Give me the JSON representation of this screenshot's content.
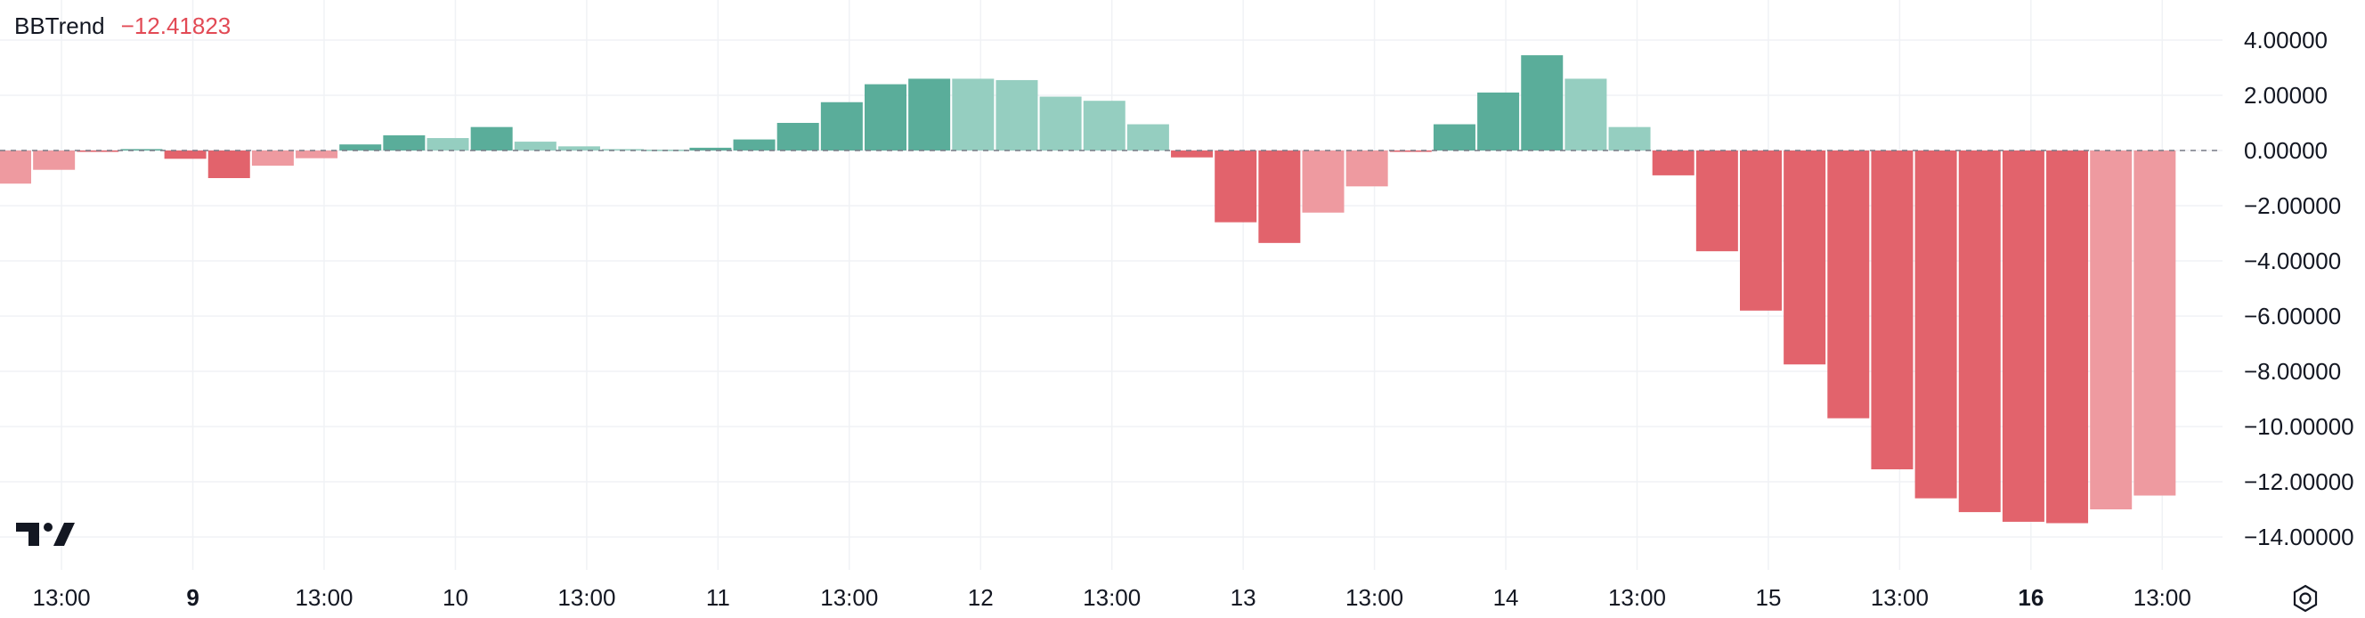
{
  "indicator": {
    "name": "BBTrend",
    "value": "−12.41823"
  },
  "icons": {
    "logo": "tradingview-logo-icon",
    "settings": "settings-gear-icon"
  },
  "colors": {
    "positive_strong": "#5aad9a",
    "positive_weak": "#95cec0",
    "negative_strong": "#e2636c",
    "negative_weak": "#ee9aa0",
    "grid": "#f0f2f5",
    "zero_line": "#787b86"
  },
  "chart_data": {
    "type": "bar",
    "ylim": [
      -15,
      5
    ],
    "y_ticks": [
      {
        "v": 4,
        "label": "4.00000"
      },
      {
        "v": 2,
        "label": "2.00000"
      },
      {
        "v": 0,
        "label": "0.00000"
      },
      {
        "v": -2,
        "label": "−2.00000"
      },
      {
        "v": -4,
        "label": "−4.00000"
      },
      {
        "v": -6,
        "label": "−6.00000"
      },
      {
        "v": -8,
        "label": "−8.00000"
      },
      {
        "v": -10,
        "label": "−10.00000"
      },
      {
        "v": -12,
        "label": "−12.00000"
      },
      {
        "v": -14,
        "label": "−14.00000"
      }
    ],
    "x_ticks": [
      {
        "bar": 1.65,
        "label": "13:00",
        "bold": false
      },
      {
        "bar": 4.65,
        "label": "9",
        "bold": true
      },
      {
        "bar": 7.65,
        "label": "13:00",
        "bold": false
      },
      {
        "bar": 10.65,
        "label": "10",
        "bold": false
      },
      {
        "bar": 13.65,
        "label": "13:00",
        "bold": false
      },
      {
        "bar": 16.65,
        "label": "11",
        "bold": false
      },
      {
        "bar": 19.65,
        "label": "13:00",
        "bold": false
      },
      {
        "bar": 22.65,
        "label": "12",
        "bold": false
      },
      {
        "bar": 25.65,
        "label": "13:00",
        "bold": false
      },
      {
        "bar": 28.65,
        "label": "13",
        "bold": false
      },
      {
        "bar": 31.65,
        "label": "13:00",
        "bold": false
      },
      {
        "bar": 34.65,
        "label": "14",
        "bold": false
      },
      {
        "bar": 37.65,
        "label": "13:00",
        "bold": false
      },
      {
        "bar": 40.65,
        "label": "15",
        "bold": false
      },
      {
        "bar": 43.65,
        "label": "13:00",
        "bold": false
      },
      {
        "bar": 46.65,
        "label": "16",
        "bold": true
      },
      {
        "bar": 49.65,
        "label": "13:00",
        "bold": false
      }
    ],
    "values": [
      -1.2,
      -0.7,
      -0.05,
      0.05,
      -0.3,
      -1.0,
      -0.55,
      -0.28,
      0.22,
      0.55,
      0.45,
      0.85,
      0.32,
      0.15,
      0.05,
      0.03,
      0.1,
      0.4,
      1.0,
      1.75,
      2.4,
      2.6,
      2.6,
      2.55,
      1.95,
      1.8,
      0.95,
      -0.25,
      -2.6,
      -3.35,
      -2.25,
      -1.3,
      -0.05,
      0.95,
      2.1,
      3.45,
      2.6,
      0.85,
      -0.9,
      -3.65,
      -5.8,
      -7.75,
      -9.7,
      -11.55,
      -12.6,
      -13.1,
      -13.45,
      -13.5,
      -13.0,
      -12.5
    ],
    "shades": [
      "weak",
      "weak",
      "strong",
      "strong",
      "strong",
      "strong",
      "weak",
      "weak",
      "strong",
      "strong",
      "weak",
      "strong",
      "weak",
      "weak",
      "weak",
      "weak",
      "strong",
      "strong",
      "strong",
      "strong",
      "strong",
      "strong",
      "weak",
      "weak",
      "weak",
      "weak",
      "weak",
      "strong",
      "strong",
      "strong",
      "weak",
      "weak",
      "strong",
      "strong",
      "strong",
      "strong",
      "weak",
      "weak",
      "strong",
      "strong",
      "strong",
      "strong",
      "strong",
      "strong",
      "strong",
      "strong",
      "strong",
      "strong",
      "weak",
      "weak"
    ]
  }
}
